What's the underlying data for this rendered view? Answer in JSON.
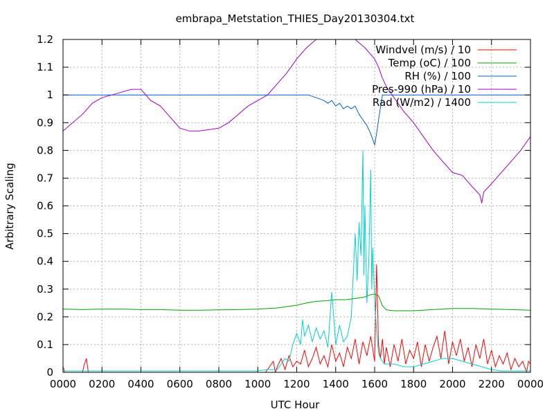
{
  "chart_data": {
    "type": "line",
    "title": "embrapa_Metstation_THIES_Day20130304.txt",
    "xlabel": "UTC Hour",
    "ylabel": "Arbitrary Scaling",
    "xlim": [
      0,
      2400
    ],
    "ylim": [
      0,
      1.2
    ],
    "grid": true,
    "legend_position": "top-right",
    "x_ticks": [
      "0000",
      "0200",
      "0400",
      "0600",
      "0800",
      "1000",
      "1200",
      "1400",
      "1600",
      "1800",
      "2000",
      "2200",
      "0000"
    ],
    "y_ticks": [
      "0",
      "0.1",
      "0.2",
      "0.3",
      "0.4",
      "0.5",
      "0.6",
      "0.7",
      "0.8",
      "0.9",
      "1",
      "1.1",
      "1.2"
    ],
    "series": [
      {
        "name": "Windvel (m/s) / 10",
        "color": "#ff0000",
        "x": [
          0,
          10,
          20,
          100,
          110,
          120,
          130,
          140,
          200,
          400,
          600,
          800,
          1000,
          1040,
          1060,
          1080,
          1090,
          1100,
          1120,
          1140,
          1160,
          1180,
          1200,
          1220,
          1240,
          1260,
          1280,
          1300,
          1320,
          1340,
          1360,
          1380,
          1400,
          1420,
          1440,
          1460,
          1480,
          1500,
          1520,
          1540,
          1560,
          1580,
          1600,
          1610,
          1620,
          1630,
          1640,
          1650,
          1660,
          1680,
          1700,
          1720,
          1740,
          1760,
          1780,
          1800,
          1820,
          1840,
          1860,
          1880,
          1900,
          1920,
          1940,
          1960,
          1980,
          2000,
          2020,
          2040,
          2060,
          2080,
          2100,
          2120,
          2140,
          2160,
          2180,
          2200,
          2220,
          2240,
          2260,
          2280,
          2300,
          2320,
          2340,
          2360,
          2380,
          2390,
          2400
        ],
        "y": [
          0.02,
          0.0,
          0.0,
          0.0,
          0.03,
          0.05,
          0.0,
          0.0,
          0.0,
          0.0,
          0.0,
          0.0,
          0.0,
          0.0,
          0.02,
          0.04,
          0.0,
          0.02,
          0.05,
          0.01,
          0.06,
          0.02,
          0.04,
          0.03,
          0.08,
          0.02,
          0.05,
          0.09,
          0.03,
          0.06,
          0.02,
          0.1,
          0.04,
          0.07,
          0.02,
          0.09,
          0.05,
          0.12,
          0.03,
          0.11,
          0.06,
          0.13,
          0.04,
          0.39,
          0.1,
          0.05,
          0.12,
          0.03,
          0.09,
          0.02,
          0.1,
          0.04,
          0.12,
          0.03,
          0.08,
          0.05,
          0.11,
          0.02,
          0.1,
          0.04,
          0.09,
          0.13,
          0.05,
          0.15,
          0.03,
          0.11,
          0.06,
          0.12,
          0.04,
          0.09,
          0.02,
          0.1,
          0.05,
          0.12,
          0.03,
          0.08,
          0.02,
          0.06,
          0.03,
          0.07,
          0.01,
          0.05,
          0.02,
          0.04,
          0.0,
          0.04,
          0.03
        ]
      },
      {
        "name": "Temp (oC) / 100",
        "color": "#00a000",
        "x": [
          0,
          100,
          200,
          300,
          400,
          500,
          600,
          700,
          800,
          900,
          1000,
          1100,
          1200,
          1250,
          1300,
          1350,
          1400,
          1450,
          1500,
          1550,
          1580,
          1600,
          1620,
          1640,
          1660,
          1700,
          1800,
          1900,
          2000,
          2100,
          2200,
          2300,
          2400
        ],
        "y": [
          0.228,
          0.226,
          0.228,
          0.228,
          0.226,
          0.226,
          0.224,
          0.224,
          0.225,
          0.226,
          0.228,
          0.232,
          0.242,
          0.25,
          0.256,
          0.258,
          0.262,
          0.262,
          0.266,
          0.272,
          0.28,
          0.282,
          0.276,
          0.24,
          0.225,
          0.222,
          0.222,
          0.226,
          0.23,
          0.23,
          0.228,
          0.226,
          0.224
        ]
      },
      {
        "name": "RH (%) / 100",
        "color": "#0060d0",
        "x": [
          0,
          500,
          1000,
          1260,
          1300,
          1340,
          1360,
          1380,
          1400,
          1420,
          1440,
          1460,
          1480,
          1500,
          1520,
          1540,
          1560,
          1580,
          1590,
          1600,
          1610,
          1620,
          1640,
          1660,
          1700,
          1800,
          2000,
          2200,
          2400
        ],
        "y": [
          1.0,
          1.0,
          1.0,
          1.0,
          0.99,
          0.98,
          0.97,
          0.98,
          0.96,
          0.97,
          0.95,
          0.96,
          0.95,
          0.96,
          0.93,
          0.91,
          0.89,
          0.86,
          0.84,
          0.82,
          0.86,
          0.91,
          1.0,
          1.0,
          1.0,
          1.0,
          1.0,
          1.0,
          1.0
        ]
      },
      {
        "name": "Pres-990 (hPa) / 10",
        "color": "#a000c0",
        "x": [
          0,
          100,
          150,
          200,
          300,
          350,
          400,
          450,
          500,
          550,
          600,
          650,
          700,
          800,
          850,
          900,
          950,
          1000,
          1050,
          1100,
          1150,
          1200,
          1250,
          1300,
          1330,
          1400,
          1500,
          1550,
          1600,
          1620,
          1640,
          1660,
          1700,
          1750,
          1800,
          1850,
          1900,
          1950,
          2000,
          2050,
          2100,
          2140,
          2150,
          2160,
          2200,
          2250,
          2300,
          2350,
          2400
        ],
        "y": [
          0.87,
          0.93,
          0.97,
          0.99,
          1.01,
          1.02,
          1.02,
          0.98,
          0.96,
          0.92,
          0.88,
          0.87,
          0.87,
          0.88,
          0.9,
          0.93,
          0.96,
          0.98,
          1.0,
          1.04,
          1.08,
          1.13,
          1.17,
          1.2,
          1.2,
          1.2,
          1.2,
          1.17,
          1.13,
          1.1,
          1.06,
          1.03,
          0.99,
          0.94,
          0.9,
          0.85,
          0.8,
          0.76,
          0.72,
          0.71,
          0.67,
          0.64,
          0.61,
          0.65,
          0.68,
          0.72,
          0.76,
          0.8,
          0.85
        ]
      },
      {
        "name": "Rad (W/m2) / 1400",
        "color": "#00d0d0",
        "x": [
          0,
          500,
          1000,
          1050,
          1100,
          1120,
          1140,
          1160,
          1180,
          1200,
          1220,
          1230,
          1240,
          1260,
          1280,
          1300,
          1320,
          1340,
          1360,
          1380,
          1390,
          1400,
          1420,
          1440,
          1460,
          1480,
          1500,
          1510,
          1520,
          1530,
          1540,
          1545,
          1550,
          1560,
          1570,
          1580,
          1585,
          1590,
          1600,
          1610,
          1620,
          1630,
          1640,
          1650,
          1700,
          1750,
          1800,
          1850,
          1900,
          1950,
          2000,
          2050,
          2100,
          2150,
          2200,
          2250,
          2300,
          2350,
          2400
        ],
        "y": [
          0.005,
          0.005,
          0.005,
          0.01,
          0.01,
          0.03,
          0.05,
          0.04,
          0.1,
          0.14,
          0.1,
          0.19,
          0.13,
          0.17,
          0.11,
          0.16,
          0.12,
          0.15,
          0.09,
          0.29,
          0.2,
          0.1,
          0.17,
          0.11,
          0.13,
          0.2,
          0.5,
          0.33,
          0.54,
          0.42,
          0.8,
          0.35,
          0.6,
          0.25,
          0.4,
          0.73,
          0.3,
          0.45,
          0.26,
          0.15,
          0.07,
          0.05,
          0.04,
          0.03,
          0.03,
          0.02,
          0.02,
          0.03,
          0.04,
          0.05,
          0.05,
          0.04,
          0.03,
          0.02,
          0.01,
          0.005,
          0.005,
          0.005,
          0.005
        ]
      }
    ]
  }
}
